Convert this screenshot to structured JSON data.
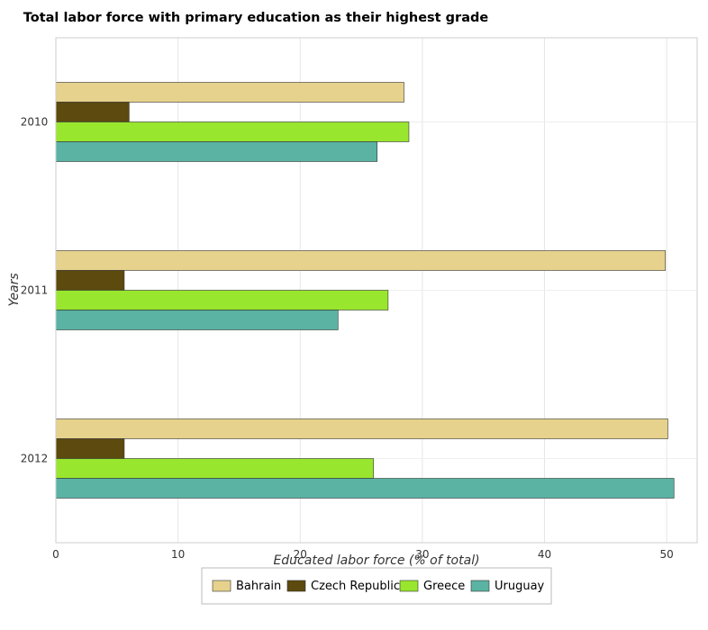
{
  "chart_data": {
    "type": "bar",
    "orientation": "horizontal",
    "title": "Total labor force with primary education as their highest grade",
    "xlabel": "Educated labor force (% of total)",
    "ylabel": "Years",
    "categories": [
      "2010",
      "2011",
      "2012"
    ],
    "xlim": [
      0,
      52.5
    ],
    "xticks": [
      0,
      10,
      20,
      30,
      40,
      50
    ],
    "grid": true,
    "legend_position": "bottom",
    "series": [
      {
        "name": "Bahrain",
        "color": "#e6d28c",
        "values": [
          28.5,
          49.9,
          50.1
        ]
      },
      {
        "name": "Czech Republic",
        "color": "#5c4a0e",
        "values": [
          6.0,
          5.6,
          5.6
        ]
      },
      {
        "name": "Greece",
        "color": "#99e62e",
        "values": [
          28.9,
          27.2,
          26.0
        ]
      },
      {
        "name": "Uruguay",
        "color": "#5ab3a3",
        "values": [
          26.3,
          23.1,
          50.6
        ]
      }
    ]
  }
}
